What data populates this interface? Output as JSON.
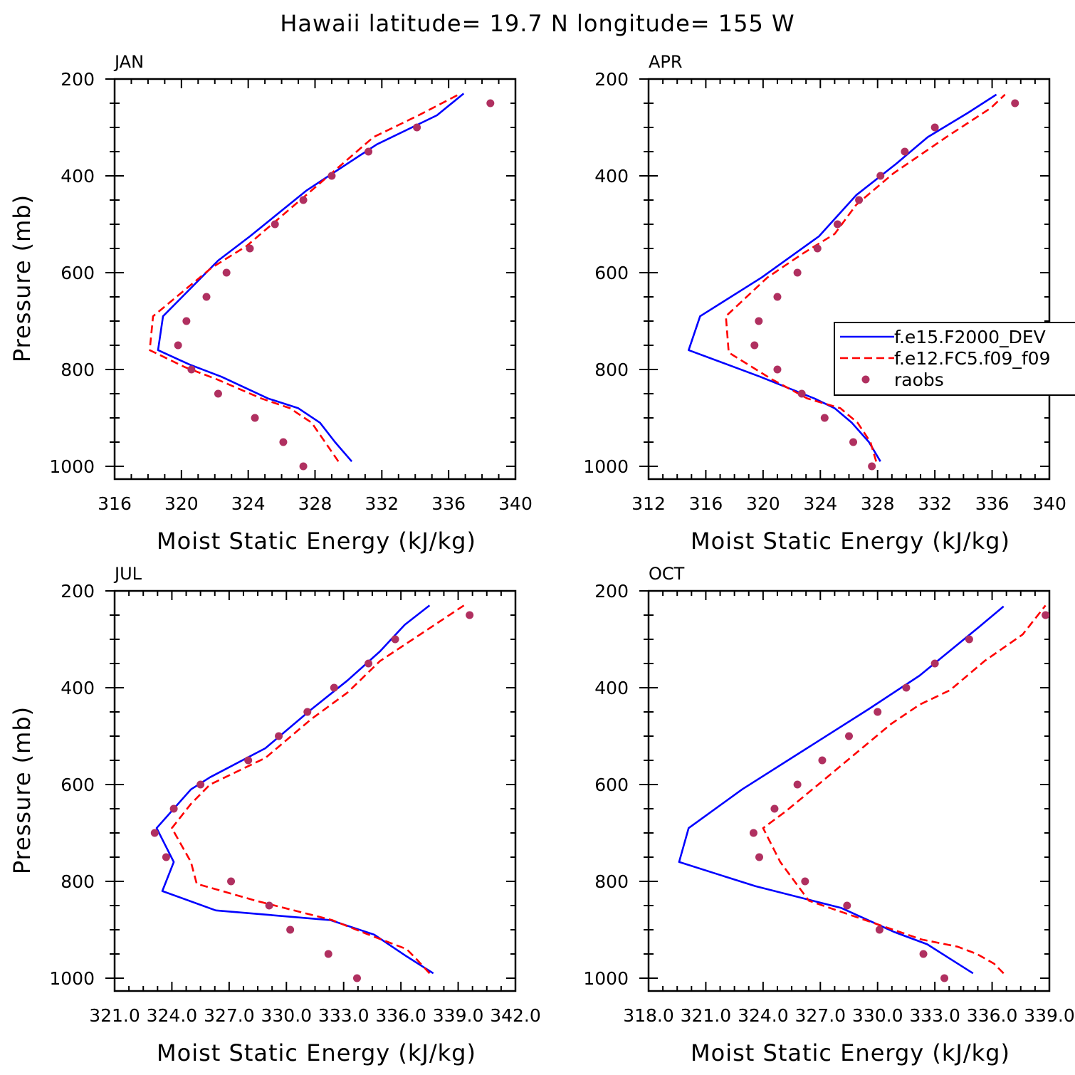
{
  "figure": {
    "title": "Hawaii  latitude= 19.7 N longitude= 155 W"
  },
  "colors": {
    "series1": "#0000ff",
    "series2": "#ff0000",
    "raobs": "#b03060",
    "axes": "#000000"
  },
  "chart_data": [
    {
      "type": "line",
      "title": "JAN",
      "xlabel": "Moist Static Energy (kJ/kg)",
      "ylabel": "Pressure (mb)",
      "xlim": [
        316,
        340
      ],
      "ylim": [
        1000,
        200
      ],
      "y_reversed": true,
      "xticks": [
        316,
        320,
        324,
        328,
        332,
        336,
        340
      ],
      "xticklabels": [
        "316",
        "320",
        "324",
        "328",
        "332",
        "336",
        "340"
      ],
      "yticks": [
        200,
        400,
        600,
        800,
        1000
      ],
      "yticklabels": [
        "200",
        "400",
        "600",
        "800",
        "1000"
      ],
      "grid": false,
      "series": [
        {
          "name": "f.e15.F2000_DEV",
          "style": "solid",
          "x": [
            330.2,
            329.2,
            328.3,
            327.0,
            325.2,
            322.4,
            320.5,
            318.6,
            318.9,
            322.2,
            324.1,
            327.5,
            331.7,
            335.3,
            336.9
          ],
          "y": [
            990,
            950,
            910,
            880,
            860,
            815,
            790,
            760,
            690,
            575,
            525,
            430,
            335,
            275,
            230
          ]
        },
        {
          "name": "f.e12.FC5.f09_f09",
          "style": "dashed",
          "x": [
            329.4,
            328.6,
            327.8,
            326.5,
            324.8,
            322.1,
            320.2,
            318.1,
            318.3,
            321.8,
            323.9,
            327.8,
            331.5,
            334.2,
            336.6
          ],
          "y": [
            990,
            950,
            910,
            880,
            860,
            820,
            795,
            760,
            690,
            590,
            545,
            430,
            320,
            275,
            232
          ]
        },
        {
          "name": "raobs",
          "style": "points",
          "x": [
            327.3,
            326.1,
            324.4,
            322.2,
            320.6,
            319.8,
            320.3,
            321.5,
            322.7,
            324.1,
            325.6,
            327.3,
            329.0,
            331.2,
            334.1,
            338.5
          ],
          "y": [
            1000,
            950,
            900,
            850,
            800,
            750,
            700,
            650,
            600,
            550,
            500,
            450,
            400,
            350,
            300,
            250
          ]
        }
      ]
    },
    {
      "type": "line",
      "title": "APR",
      "xlabel": "Moist Static Energy (kJ/kg)",
      "ylabel": "",
      "xlim": [
        312,
        340
      ],
      "ylim": [
        1000,
        200
      ],
      "y_reversed": true,
      "xticks": [
        312,
        316,
        320,
        324,
        328,
        332,
        336,
        340
      ],
      "xticklabels": [
        "312",
        "316",
        "320",
        "324",
        "328",
        "332",
        "336",
        "340"
      ],
      "yticks": [
        200,
        400,
        600,
        800,
        1000
      ],
      "yticklabels": [
        "200",
        "400",
        "600",
        "800",
        "1000"
      ],
      "grid": false,
      "legend": {
        "position": "right-middle"
      },
      "series": [
        {
          "name": "f.e15.F2000_DEV",
          "style": "solid",
          "x": [
            328.2,
            327.4,
            326.2,
            325.0,
            323.6,
            319.8,
            314.8,
            315.6,
            319.9,
            323.9,
            326.5,
            329.3,
            331.5,
            334.3,
            336.3
          ],
          "y": [
            990,
            950,
            910,
            880,
            860,
            815,
            760,
            690,
            610,
            525,
            440,
            375,
            320,
            270,
            232
          ]
        },
        {
          "name": "f.e12.FC5.f09_f09",
          "style": "dashed",
          "x": [
            327.9,
            327.5,
            326.6,
            325.4,
            323.1,
            320.6,
            317.6,
            317.4,
            320.3,
            322.8,
            325.0,
            326.5,
            329.1,
            332.8,
            335.9,
            336.9
          ],
          "y": [
            990,
            950,
            910,
            880,
            860,
            820,
            765,
            690,
            610,
            560,
            520,
            460,
            395,
            320,
            260,
            232
          ]
        },
        {
          "name": "raobs",
          "style": "points",
          "x": [
            327.6,
            326.3,
            324.3,
            322.7,
            321.0,
            319.4,
            319.7,
            321.0,
            322.4,
            323.8,
            325.2,
            326.7,
            328.2,
            329.9,
            332.0,
            337.6
          ],
          "y": [
            1000,
            950,
            900,
            850,
            800,
            750,
            700,
            650,
            600,
            550,
            500,
            450,
            400,
            350,
            300,
            250
          ]
        }
      ]
    },
    {
      "type": "line",
      "title": "JUL",
      "xlabel": "Moist Static Energy (kJ/kg)",
      "ylabel": "Pressure (mb)",
      "xlim": [
        321.0,
        342.0
      ],
      "ylim": [
        1000,
        200
      ],
      "y_reversed": true,
      "xticks": [
        321.0,
        324.0,
        327.0,
        330.0,
        333.0,
        336.0,
        339.0,
        342.0
      ],
      "xticklabels": [
        "321.0",
        "324.0",
        "327.0",
        "330.0",
        "333.0",
        "336.0",
        "339.0",
        "342.0"
      ],
      "yticks": [
        200,
        400,
        600,
        800,
        1000
      ],
      "yticklabels": [
        "200",
        "400",
        "600",
        "800",
        "1000"
      ],
      "grid": false,
      "series": [
        {
          "name": "f.e15.F2000_DEV",
          "style": "solid",
          "x": [
            337.7,
            336.3,
            334.6,
            332.3,
            326.3,
            323.5,
            324.1,
            323.2,
            325.0,
            326.0,
            328.9,
            331.3,
            333.2,
            334.9,
            336.2,
            337.5
          ],
          "y": [
            990,
            955,
            910,
            880,
            860,
            820,
            760,
            690,
            610,
            585,
            525,
            445,
            385,
            325,
            270,
            230
          ]
        },
        {
          "name": "f.e12.FC5.f09_f09",
          "style": "dashed",
          "x": [
            337.5,
            336.8,
            336.3,
            334.3,
            332.4,
            328.4,
            325.3,
            325.0,
            324.0,
            325.0,
            326.0,
            328.9,
            331.3,
            333.2,
            334.9,
            337.2,
            339.3
          ],
          "y": [
            990,
            960,
            940,
            910,
            880,
            840,
            805,
            760,
            690,
            640,
            600,
            545,
            465,
            410,
            345,
            285,
            230
          ]
        },
        {
          "name": "raobs",
          "style": "points",
          "x": [
            333.7,
            332.2,
            330.2,
            329.1,
            327.1,
            323.7,
            323.1,
            324.1,
            325.5,
            328.0,
            329.6,
            331.1,
            332.5,
            334.3,
            335.7,
            339.6
          ],
          "y": [
            1000,
            950,
            900,
            850,
            800,
            750,
            700,
            650,
            600,
            550,
            500,
            450,
            400,
            350,
            300,
            250
          ]
        }
      ]
    },
    {
      "type": "line",
      "title": "OCT",
      "xlabel": "Moist Static Energy (kJ/kg)",
      "ylabel": "",
      "xlim": [
        318.0,
        339.0
      ],
      "ylim": [
        1000,
        200
      ],
      "y_reversed": true,
      "xticks": [
        318.0,
        321.0,
        324.0,
        327.0,
        330.0,
        333.0,
        336.0,
        339.0
      ],
      "xticklabels": [
        "318.0",
        "321.0",
        "324.0",
        "327.0",
        "330.0",
        "333.0",
        "336.0",
        "339.0"
      ],
      "yticks": [
        200,
        400,
        600,
        800,
        1000
      ],
      "yticklabels": [
        "200",
        "400",
        "600",
        "800",
        "1000"
      ],
      "grid": false,
      "series": [
        {
          "name": "f.e15.F2000_DEV",
          "style": "solid",
          "x": [
            335.0,
            333.8,
            332.6,
            330.9,
            328.1,
            323.6,
            319.6,
            320.1,
            322.9,
            326.1,
            329.5,
            332.2,
            335.3,
            336.6
          ],
          "y": [
            990,
            960,
            930,
            905,
            855,
            810,
            760,
            690,
            610,
            530,
            445,
            375,
            275,
            232
          ]
        },
        {
          "name": "f.e12.FC5.f09_f09",
          "style": "dashed",
          "x": [
            336.6,
            336.1,
            335.2,
            334.2,
            332.3,
            326.4,
            324.9,
            324.0,
            325.2,
            327.2,
            330.7,
            332.2,
            333.8,
            335.6,
            337.6,
            338.8
          ],
          "y": [
            990,
            970,
            950,
            935,
            920,
            840,
            760,
            690,
            655,
            590,
            475,
            435,
            405,
            345,
            290,
            230
          ]
        },
        {
          "name": "raobs",
          "style": "points",
          "x": [
            333.5,
            332.4,
            330.1,
            328.4,
            326.2,
            323.8,
            323.5,
            324.6,
            325.8,
            327.1,
            328.5,
            330.0,
            331.5,
            333.0,
            334.8,
            338.8
          ],
          "y": [
            1000,
            950,
            900,
            850,
            800,
            750,
            700,
            650,
            600,
            550,
            500,
            450,
            400,
            350,
            300,
            250
          ]
        }
      ]
    }
  ],
  "legend": {
    "entries": [
      {
        "label": "f.e15.F2000_DEV",
        "style": "solid"
      },
      {
        "label": "f.e12.FC5.f09_f09",
        "style": "dashed"
      },
      {
        "label": "raobs",
        "style": "points"
      }
    ]
  }
}
